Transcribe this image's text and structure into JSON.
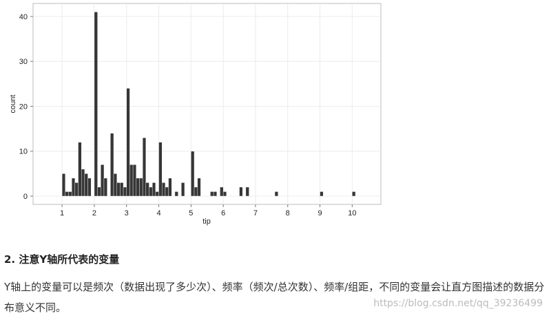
{
  "chart_data": {
    "type": "histogram",
    "x_label": "tip",
    "y_label": "count",
    "color": "#363636",
    "bins": [
      1.0,
      1.1,
      1.2,
      1.3,
      1.4,
      1.5,
      1.6,
      1.7,
      1.8,
      1.9,
      2.0,
      2.1,
      2.2,
      2.3,
      2.4,
      2.5,
      2.6,
      2.7,
      2.8,
      2.9,
      3.0,
      3.1,
      3.2,
      3.3,
      3.4,
      3.5,
      3.6,
      3.7,
      3.8,
      3.9,
      4.0,
      4.1,
      4.2,
      4.3,
      4.4,
      4.5,
      4.6,
      4.7,
      4.8,
      4.9,
      5.0,
      5.1,
      5.2,
      5.3,
      5.4,
      5.5,
      5.6,
      5.7,
      5.8,
      5.9,
      6.0,
      6.1,
      6.2,
      6.3,
      6.4,
      6.5,
      6.6,
      6.7,
      6.8,
      6.9,
      7.0,
      7.1,
      7.2,
      7.3,
      7.4,
      7.5,
      7.6,
      7.7,
      7.8,
      7.9,
      8.0,
      8.1,
      8.2,
      8.3,
      8.4,
      8.5,
      8.6,
      8.7,
      8.8,
      8.9,
      9.0,
      9.1,
      9.2,
      9.3,
      9.4,
      9.5,
      9.6,
      9.7,
      9.8,
      9.9,
      10.0,
      10.1
    ],
    "values": [
      5,
      1,
      1,
      4,
      3,
      12,
      6,
      5,
      4,
      0,
      41,
      2,
      7,
      4,
      0,
      14,
      5,
      3,
      3,
      2,
      24,
      7,
      7,
      4,
      4,
      13,
      3,
      2,
      3,
      1,
      12,
      3,
      2,
      4,
      0,
      1,
      0,
      3,
      0,
      0,
      10,
      2,
      4,
      0,
      0,
      0,
      1,
      1,
      0,
      2,
      1,
      0,
      0,
      0,
      0,
      2,
      0,
      2,
      0,
      0,
      0,
      0,
      0,
      0,
      0,
      0,
      1,
      0,
      0,
      0,
      0,
      0,
      0,
      0,
      0,
      0,
      0,
      0,
      0,
      0,
      1,
      0,
      0,
      0,
      0,
      0,
      0,
      0,
      0,
      0,
      1
    ],
    "xlim": [
      0.1,
      10.89
    ],
    "ylim": [
      -1.84,
      42.9
    ],
    "xticks": [
      1,
      2,
      3,
      4,
      5,
      6,
      7,
      8,
      9,
      10
    ],
    "yticks": [
      0,
      10,
      20,
      30,
      40
    ],
    "grid": true
  },
  "heading": "2. 注意Y轴所代表的变量",
  "paragraph": "Y轴上的变量可以是频次（数据出现了多少次）、频率（频次/总次数）、频率/组距，不同的变量会让直方图描述的数据分布意义不同。",
  "watermark": "https://blog.csdn.net/qq_39236499"
}
